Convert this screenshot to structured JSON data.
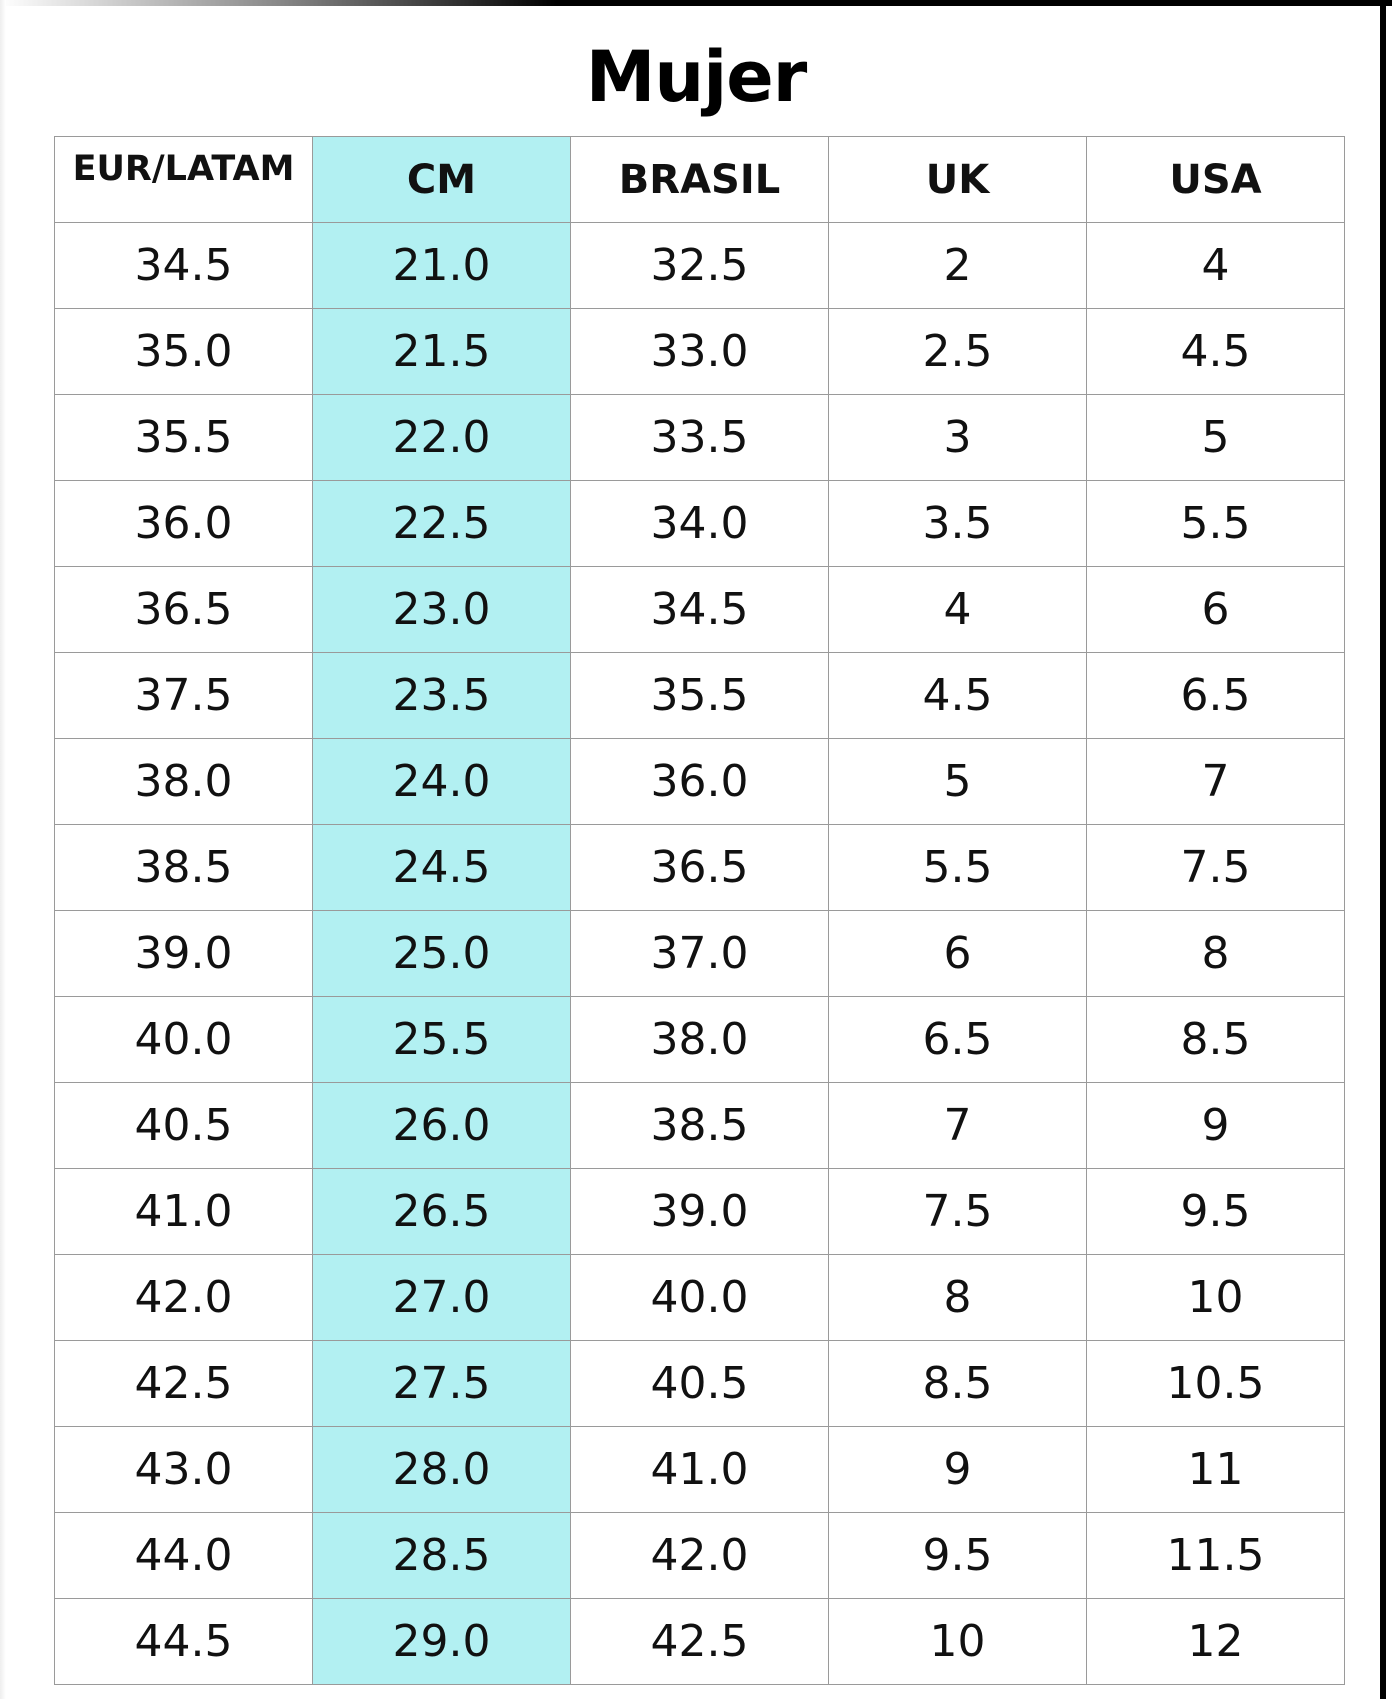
{
  "header": {
    "title": "Mujer"
  },
  "table": {
    "columns": [
      "EUR/LATAM",
      "CM",
      "BRASIL",
      "UK",
      "USA"
    ],
    "rows": [
      [
        "34.5",
        "21.0",
        "32.5",
        "2",
        "4"
      ],
      [
        "35.0",
        "21.5",
        "33.0",
        "2.5",
        "4.5"
      ],
      [
        "35.5",
        "22.0",
        "33.5",
        "3",
        "5"
      ],
      [
        "36.0",
        "22.5",
        "34.0",
        "3.5",
        "5.5"
      ],
      [
        "36.5",
        "23.0",
        "34.5",
        "4",
        "6"
      ],
      [
        "37.5",
        "23.5",
        "35.5",
        "4.5",
        "6.5"
      ],
      [
        "38.0",
        "24.0",
        "36.0",
        "5",
        "7"
      ],
      [
        "38.5",
        "24.5",
        "36.5",
        "5.5",
        "7.5"
      ],
      [
        "39.0",
        "25.0",
        "37.0",
        "6",
        "8"
      ],
      [
        "40.0",
        "25.5",
        "38.0",
        "6.5",
        "8.5"
      ],
      [
        "40.5",
        "26.0",
        "38.5",
        "7",
        "9"
      ],
      [
        "41.0",
        "26.5",
        "39.0",
        "7.5",
        "9.5"
      ],
      [
        "42.0",
        "27.0",
        "40.0",
        "8",
        "10"
      ],
      [
        "42.5",
        "27.5",
        "40.5",
        "8.5",
        "10.5"
      ],
      [
        "43.0",
        "28.0",
        "41.0",
        "9",
        "11"
      ],
      [
        "44.0",
        "28.5",
        "42.0",
        "9.5",
        "11.5"
      ],
      [
        "44.5",
        "29.0",
        "42.5",
        "10",
        "12"
      ]
    ]
  }
}
